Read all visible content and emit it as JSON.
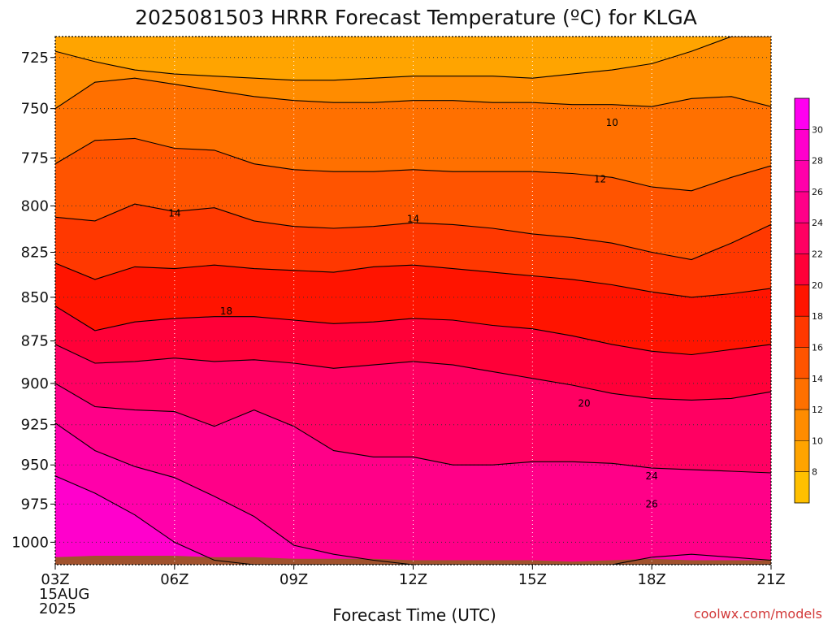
{
  "chart_data": {
    "type": "heatmap",
    "title": "2025081503 HRRR Forecast Temperature (ºC) for KLGA",
    "xlabel": "Forecast Time (UTC)",
    "x": [
      3,
      4,
      5,
      6,
      7,
      8,
      9,
      10,
      11,
      12,
      13,
      14,
      15,
      16,
      17,
      18,
      19,
      20,
      21
    ],
    "x_ticks": [
      "03Z",
      "06Z",
      "09Z",
      "12Z",
      "15Z",
      "18Z",
      "21Z"
    ],
    "x_date_lines": [
      "15AUG",
      "2025"
    ],
    "y_ticks": [
      725,
      750,
      775,
      800,
      825,
      850,
      875,
      900,
      925,
      950,
      975,
      1000
    ],
    "ylim": [
      1015,
      715
    ],
    "y_scale": "log-pressure",
    "grid": true,
    "colorbar": {
      "levels": [
        6,
        8,
        10,
        12,
        14,
        16,
        18,
        20,
        22,
        24,
        26,
        28,
        30,
        32
      ],
      "tick_labels": [
        "8",
        "10",
        "12",
        "14",
        "16",
        "18",
        "20",
        "22",
        "24",
        "26",
        "28",
        "30"
      ],
      "colors": [
        "#ffc000",
        "#ffa400",
        "#ff8c00",
        "#ff7000",
        "#ff5400",
        "#ff3800",
        "#ff1400",
        "#ff0038",
        "#ff0062",
        "#ff0088",
        "#ff00aa",
        "#ff00cc",
        "#ff00f0"
      ],
      "position": "right"
    },
    "contour_labels": [
      {
        "text": "10",
        "x": 17.0,
        "p": 757
      },
      {
        "text": "12",
        "x": 16.7,
        "p": 786
      },
      {
        "text": "14",
        "x": 6.0,
        "p": 804
      },
      {
        "text": "14",
        "x": 12.0,
        "p": 807
      },
      {
        "text": "18",
        "x": 7.3,
        "p": 858
      },
      {
        "text": "20",
        "x": 16.3,
        "p": 912
      },
      {
        "text": "24",
        "x": 18.0,
        "p": 957
      },
      {
        "text": "26",
        "x": 18.0,
        "p": 975
      }
    ],
    "isotherms": [
      {
        "t": 10,
        "p": [
          722,
          727,
          731,
          733,
          734,
          735,
          736,
          736,
          735,
          734,
          734,
          734,
          735,
          733,
          731,
          728,
          722,
          715,
          715
        ]
      },
      {
        "t": 12,
        "p": [
          750,
          737,
          735,
          738,
          741,
          744,
          746,
          747,
          747,
          746,
          746,
          747,
          747,
          748,
          748,
          749,
          745,
          744,
          749
        ]
      },
      {
        "t": 14,
        "p": [
          778,
          766,
          765,
          770,
          771,
          778,
          781,
          782,
          782,
          781,
          782,
          782,
          782,
          783,
          785,
          790,
          792,
          785,
          779
        ]
      },
      {
        "t": 16,
        "p": [
          806,
          808,
          799,
          803,
          801,
          808,
          811,
          812,
          811,
          809,
          810,
          812,
          815,
          817,
          820,
          825,
          829,
          820,
          810
        ]
      },
      {
        "t": 18,
        "p": [
          831,
          840,
          833,
          834,
          832,
          834,
          835,
          836,
          833,
          832,
          834,
          836,
          838,
          840,
          843,
          847,
          850,
          848,
          845
        ]
      },
      {
        "t": 20,
        "p": [
          855,
          869,
          864,
          862,
          861,
          861,
          863,
          865,
          864,
          862,
          863,
          866,
          868,
          872,
          877,
          881,
          883,
          880,
          877
        ]
      },
      {
        "t": 22,
        "p": [
          877,
          888,
          887,
          885,
          887,
          886,
          888,
          891,
          889,
          887,
          889,
          893,
          897,
          901,
          906,
          909,
          910,
          909,
          905
        ]
      },
      {
        "t": 24,
        "p": [
          900,
          914,
          916,
          917,
          926,
          916,
          926,
          941,
          945,
          945,
          950,
          950,
          948,
          948,
          949,
          952,
          953,
          954,
          955
        ]
      },
      {
        "t": 26,
        "p": [
          924,
          941,
          951,
          958,
          970,
          983,
          1002,
          1008,
          1012,
          1015,
          1015,
          1015,
          1015,
          1015,
          1015,
          1010,
          1008,
          1010,
          1012
        ]
      },
      {
        "t": 28,
        "p": [
          957,
          968,
          982,
          1000,
          1012,
          1015,
          1015,
          1015,
          1015,
          1015,
          1015,
          1015,
          1015,
          1015,
          1015,
          1015,
          1015,
          1015,
          1015
        ]
      }
    ],
    "terrain_surface_p": [
      1010,
      1009,
      1009,
      1009,
      1010,
      1010,
      1011,
      1011,
      1011,
      1012,
      1012,
      1012,
      1012,
      1013,
      1012,
      1011,
      1012,
      1012,
      1012
    ],
    "terrain_color": "#a0522d"
  },
  "credit": "coolwx.com/models"
}
